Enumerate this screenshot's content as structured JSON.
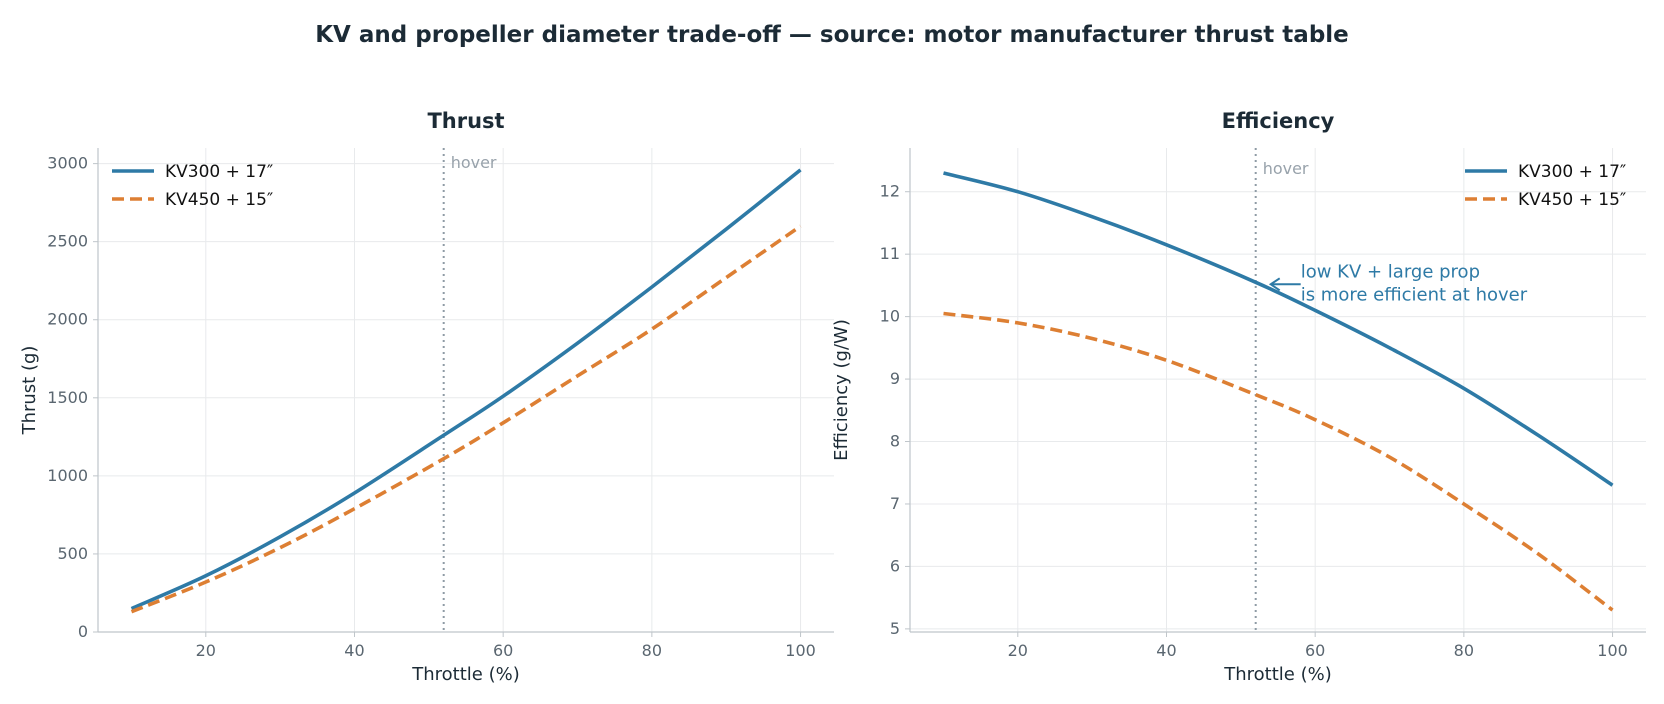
{
  "title": "KV and propeller diameter trade-off — source: motor manufacturer thrust table",
  "colors": {
    "series1": "#2e7aa6",
    "series2": "#dd7f33",
    "hover": "#8f9ba5",
    "grid": "#e8eaec",
    "axis": "#bfc5ca"
  },
  "chart_data": [
    {
      "type": "line",
      "title": "Thrust",
      "xlabel": "Throttle (%)",
      "ylabel": "Thrust (g)",
      "xlim": [
        5.5,
        104.5
      ],
      "ylim": [
        0,
        3100
      ],
      "xticks": [
        20,
        40,
        60,
        80,
        100
      ],
      "yticks": [
        0,
        500,
        1000,
        1500,
        2000,
        2500,
        3000
      ],
      "grid": true,
      "legend": "upper-left",
      "vline": {
        "x": 52,
        "label": "hover"
      },
      "x": [
        10,
        20,
        30,
        40,
        52,
        60,
        70,
        80,
        90,
        100
      ],
      "series": [
        {
          "name": "KV300 + 17″",
          "style": "solid",
          "values": [
            150,
            360,
            610,
            890,
            1260,
            1510,
            1850,
            2210,
            2580,
            2960
          ]
        },
        {
          "name": "KV450 + 15″",
          "style": "dashed",
          "values": [
            130,
            320,
            540,
            790,
            1110,
            1340,
            1640,
            1940,
            2270,
            2600
          ]
        }
      ]
    },
    {
      "type": "line",
      "title": "Efficiency",
      "xlabel": "Throttle (%)",
      "ylabel": "Efficiency (g/W)",
      "xlim": [
        5.5,
        104.5
      ],
      "ylim": [
        4.95,
        12.7
      ],
      "xticks": [
        20,
        40,
        60,
        80,
        100
      ],
      "yticks": [
        5,
        6,
        7,
        8,
        9,
        10,
        11,
        12
      ],
      "grid": true,
      "legend": "upper-right",
      "vline": {
        "x": 52,
        "label": "hover"
      },
      "annotation": {
        "lines": [
          "low KV + large prop",
          "is more efficient at hover"
        ],
        "x": 52,
        "y": 10.55
      },
      "x": [
        10,
        20,
        30,
        40,
        52,
        60,
        70,
        80,
        90,
        100
      ],
      "series": [
        {
          "name": "KV300 + 17″",
          "style": "solid",
          "values": [
            12.3,
            12.0,
            11.6,
            11.15,
            10.55,
            10.1,
            9.5,
            8.85,
            8.1,
            7.3
          ]
        },
        {
          "name": "KV450 + 15″",
          "style": "dashed",
          "values": [
            10.05,
            9.9,
            9.65,
            9.3,
            8.75,
            8.35,
            7.75,
            7.0,
            6.2,
            5.3
          ]
        }
      ]
    }
  ]
}
